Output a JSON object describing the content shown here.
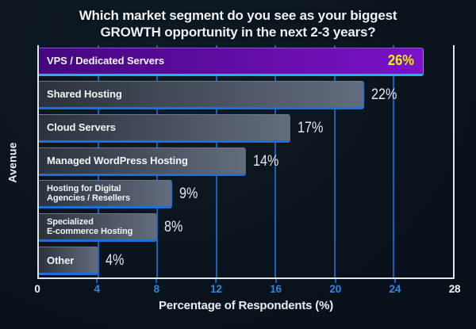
{
  "title": {
    "line1": "Which market segment do you see as your biggest",
    "line2": "GROWTH opportunity in the next 2-3 years?"
  },
  "x_axis_label": "Percentage of Respondents (%)",
  "y_axis_label": "Avenue",
  "colors": {
    "background": "#0a141c",
    "axis_line": "#dfe7ee",
    "gridline": "#1a5fb8",
    "tick_inner": "#2e86e0",
    "tick_endpoint": "#f2f6f9",
    "bar_fill_start": "#2b323d",
    "bar_fill_end": "#626d7d",
    "bar_border_blue": "#1f70d6",
    "highlight_fill_start": "#45077e",
    "highlight_fill_end": "#7c12c9",
    "highlight_border": "#28aee8",
    "highlight_value_color": "#ecf205",
    "label_text": "#f2f5f8",
    "value_text": "#e4eaef"
  },
  "chart_data": {
    "type": "bar",
    "orientation": "horizontal",
    "title": "Which market segment do you see as your biggest GROWTH opportunity in the next 2-3 years?",
    "xlabel": "Percentage of Respondents (%)",
    "ylabel": "Avenue",
    "xlim": [
      0,
      28
    ],
    "xticks": [
      "0",
      "4",
      "8",
      "12",
      "16",
      "20",
      "24",
      "28"
    ],
    "xtick_colors": [
      "#f2f6f9",
      "#2e86e0",
      "#2e86e0",
      "#2e86e0",
      "#2e86e0",
      "#2e86e0",
      "#2e86e0",
      "#f2f6f9"
    ],
    "grid": "vertical",
    "legend": "none",
    "bars": [
      {
        "label": "VPS / Dedicated Servers",
        "value": 26,
        "display": "26%",
        "highlight": true
      },
      {
        "label": "Shared Hosting",
        "value": 22,
        "display": "22%",
        "highlight": false
      },
      {
        "label": "Cloud Servers",
        "value": 17,
        "display": "17%",
        "highlight": false
      },
      {
        "label": "Managed WordPress Hosting",
        "value": 14,
        "display": "14%",
        "highlight": false
      },
      {
        "label": "Hosting for Digital\nAgencies / Resellers",
        "value": 9,
        "display": "9%",
        "highlight": false
      },
      {
        "label": "Specialized\nE-commerce Hosting",
        "value": 8,
        "display": "8%",
        "highlight": false
      },
      {
        "label": "Other",
        "value": 4,
        "display": "4%",
        "highlight": false
      }
    ]
  }
}
